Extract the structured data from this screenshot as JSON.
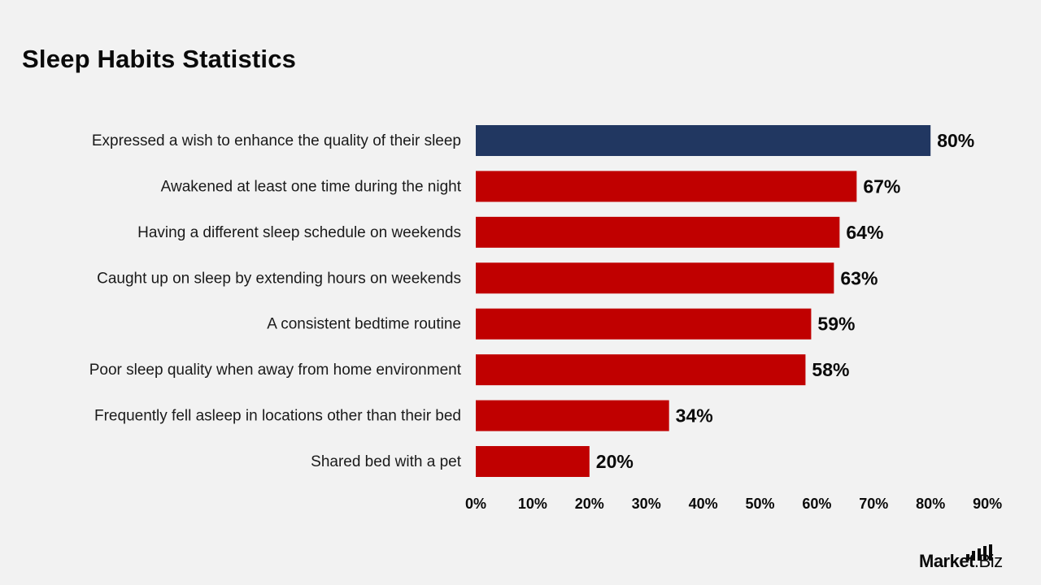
{
  "chart_data": {
    "type": "bar",
    "orientation": "horizontal",
    "title": "Sleep Habits Statistics",
    "categories": [
      "Expressed a wish to enhance the quality of their sleep",
      "Awakened at least one time during the night",
      "Having a different sleep schedule on weekends",
      "Caught up on sleep by extending hours on weekends",
      "A consistent bedtime routine",
      "Poor sleep quality when away from home environment",
      "Frequently fell asleep in locations other than their bed",
      "Shared bed with a pet"
    ],
    "values": [
      80,
      67,
      64,
      63,
      59,
      58,
      34,
      20
    ],
    "value_labels": [
      "80%",
      "67%",
      "64%",
      "63%",
      "59%",
      "58%",
      "34%",
      "20%"
    ],
    "xlim": [
      0,
      90
    ],
    "x_ticks": [
      "0%",
      "10%",
      "20%",
      "30%",
      "40%",
      "50%",
      "60%",
      "70%",
      "80%",
      "90%"
    ],
    "bar_colors": [
      "#213761",
      "#c00000",
      "#c00000",
      "#c00000",
      "#c00000",
      "#c00000",
      "#c00000",
      "#c00000"
    ],
    "grid": false,
    "legend": "none"
  },
  "brand": {
    "name": "Market",
    "suffix": ".Biz"
  }
}
